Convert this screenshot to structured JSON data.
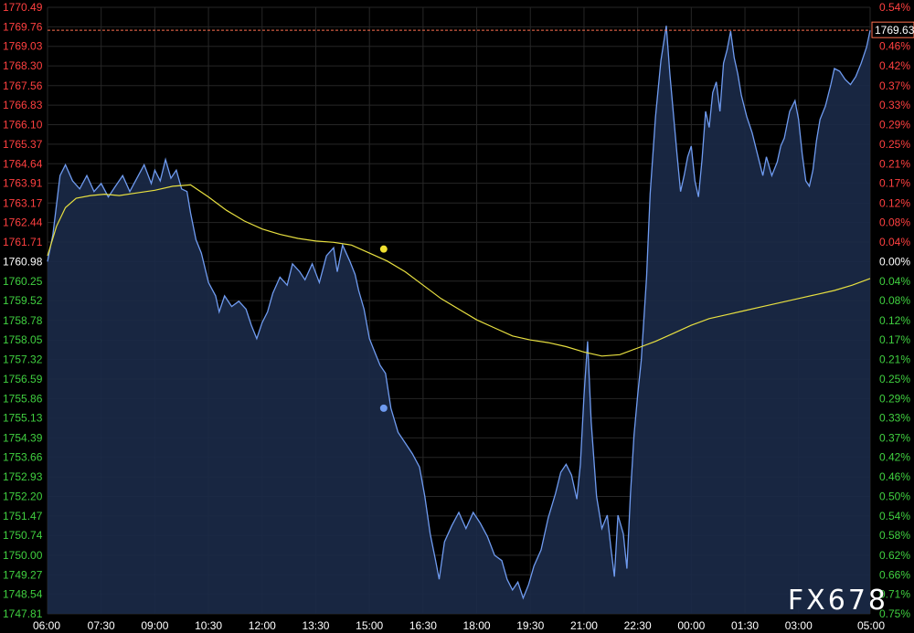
{
  "watermark": "FX678",
  "chart_data": {
    "type": "line",
    "title": "",
    "xlabel": "",
    "ylabel": "",
    "reference_price": 1760.98,
    "ylim": [
      1747.81,
      1770.49
    ],
    "y_ticks": [
      "1770.49",
      "1769.76",
      "1769.03",
      "1768.30",
      "1767.56",
      "1766.83",
      "1766.10",
      "1765.37",
      "1764.64",
      "1763.91",
      "1763.17",
      "1762.44",
      "1761.71",
      "1760.98",
      "1760.25",
      "1759.52",
      "1758.78",
      "1758.05",
      "1757.32",
      "1756.59",
      "1755.86",
      "1755.13",
      "1754.39",
      "1753.66",
      "1752.93",
      "1752.20",
      "1751.47",
      "1750.74",
      "1750.00",
      "1749.27",
      "1748.54",
      "1747.81"
    ],
    "pct_ticks": [
      "0.54%",
      "0.50%",
      "0.46%",
      "0.42%",
      "0.37%",
      "0.33%",
      "0.29%",
      "0.25%",
      "0.21%",
      "0.17%",
      "0.12%",
      "0.08%",
      "0.04%",
      "0.00%",
      "0.04%",
      "0.08%",
      "0.12%",
      "0.17%",
      "0.21%",
      "0.25%",
      "0.29%",
      "0.33%",
      "0.37%",
      "0.42%",
      "0.46%",
      "0.50%",
      "0.54%",
      "0.58%",
      "0.62%",
      "0.66%",
      "0.71%",
      "0.75%"
    ],
    "x_ticks": [
      "06:00",
      "07:30",
      "09:00",
      "10:30",
      "12:00",
      "13:30",
      "15:00",
      "16:30",
      "18:00",
      "19:30",
      "21:00",
      "22:30",
      "00:00",
      "01:30",
      "03:00",
      "05:00"
    ],
    "x_tick_hours": [
      0,
      1.5,
      3,
      4.5,
      6,
      7.5,
      9,
      10.5,
      12,
      13.5,
      15,
      16.5,
      18,
      19.5,
      21,
      23
    ],
    "last_price": "1769.63",
    "last_price_value": 1769.63,
    "colors": {
      "background": "#000000",
      "price_line": "#6f9bf0",
      "area_fill": "#1b2a48",
      "average_line": "#e8e040",
      "up_label": "#ff4040",
      "down_label": "#40d040",
      "zero_label": "#ffffff",
      "grid": "#262626",
      "last_price_line": "#ff7050"
    },
    "series": [
      {
        "kind": "price",
        "points": [
          [
            0,
            1760.98
          ],
          [
            0.15,
            1762.0
          ],
          [
            0.35,
            1764.2
          ],
          [
            0.5,
            1764.6
          ],
          [
            0.7,
            1764.0
          ],
          [
            0.9,
            1763.7
          ],
          [
            1.1,
            1764.2
          ],
          [
            1.3,
            1763.6
          ],
          [
            1.5,
            1763.9
          ],
          [
            1.7,
            1763.4
          ],
          [
            1.9,
            1763.8
          ],
          [
            2.1,
            1764.2
          ],
          [
            2.3,
            1763.6
          ],
          [
            2.5,
            1764.1
          ],
          [
            2.7,
            1764.6
          ],
          [
            2.9,
            1763.9
          ],
          [
            3.0,
            1764.4
          ],
          [
            3.15,
            1764.0
          ],
          [
            3.3,
            1764.8
          ],
          [
            3.45,
            1764.1
          ],
          [
            3.6,
            1764.4
          ],
          [
            3.75,
            1763.7
          ],
          [
            3.9,
            1763.6
          ],
          [
            4.0,
            1762.8
          ],
          [
            4.15,
            1761.8
          ],
          [
            4.3,
            1761.3
          ],
          [
            4.5,
            1760.2
          ],
          [
            4.7,
            1759.7
          ],
          [
            4.8,
            1759.1
          ],
          [
            4.95,
            1759.7
          ],
          [
            5.15,
            1759.3
          ],
          [
            5.35,
            1759.5
          ],
          [
            5.55,
            1759.2
          ],
          [
            5.7,
            1758.6
          ],
          [
            5.85,
            1758.1
          ],
          [
            6.0,
            1758.7
          ],
          [
            6.15,
            1759.1
          ],
          [
            6.3,
            1759.8
          ],
          [
            6.5,
            1760.4
          ],
          [
            6.7,
            1760.1
          ],
          [
            6.85,
            1760.9
          ],
          [
            7.05,
            1760.6
          ],
          [
            7.2,
            1760.3
          ],
          [
            7.4,
            1760.9
          ],
          [
            7.6,
            1760.2
          ],
          [
            7.8,
            1761.2
          ],
          [
            8.0,
            1761.5
          ],
          [
            8.1,
            1760.6
          ],
          [
            8.25,
            1761.6
          ],
          [
            8.45,
            1761.0
          ],
          [
            8.6,
            1760.5
          ],
          [
            8.7,
            1759.9
          ],
          [
            8.85,
            1759.2
          ],
          [
            9.0,
            1758.1
          ],
          [
            9.15,
            1757.6
          ],
          [
            9.3,
            1757.1
          ],
          [
            9.45,
            1756.8
          ],
          [
            9.6,
            1755.5
          ],
          [
            9.8,
            1754.6
          ],
          [
            10.0,
            1754.2
          ],
          [
            10.2,
            1753.8
          ],
          [
            10.4,
            1753.3
          ],
          [
            10.55,
            1752.2
          ],
          [
            10.7,
            1750.8
          ],
          [
            10.85,
            1749.8
          ],
          [
            10.95,
            1749.1
          ],
          [
            11.1,
            1750.5
          ],
          [
            11.3,
            1751.1
          ],
          [
            11.5,
            1751.6
          ],
          [
            11.7,
            1751.0
          ],
          [
            11.9,
            1751.6
          ],
          [
            12.1,
            1751.2
          ],
          [
            12.3,
            1750.7
          ],
          [
            12.5,
            1750.0
          ],
          [
            12.7,
            1749.8
          ],
          [
            12.85,
            1749.1
          ],
          [
            13.0,
            1748.7
          ],
          [
            13.15,
            1749.0
          ],
          [
            13.3,
            1748.4
          ],
          [
            13.45,
            1748.9
          ],
          [
            13.6,
            1749.6
          ],
          [
            13.8,
            1750.2
          ],
          [
            14.0,
            1751.4
          ],
          [
            14.2,
            1752.3
          ],
          [
            14.35,
            1753.1
          ],
          [
            14.5,
            1753.4
          ],
          [
            14.65,
            1753.0
          ],
          [
            14.8,
            1752.1
          ],
          [
            14.9,
            1753.4
          ],
          [
            15.0,
            1756.0
          ],
          [
            15.1,
            1758.0
          ],
          [
            15.2,
            1755.0
          ],
          [
            15.35,
            1752.2
          ],
          [
            15.5,
            1751.0
          ],
          [
            15.65,
            1751.5
          ],
          [
            15.75,
            1750.3
          ],
          [
            15.85,
            1749.2
          ],
          [
            15.95,
            1751.5
          ],
          [
            16.1,
            1750.8
          ],
          [
            16.2,
            1749.5
          ],
          [
            16.3,
            1752.3
          ],
          [
            16.4,
            1754.5
          ],
          [
            16.5,
            1756.0
          ],
          [
            16.6,
            1757.3
          ],
          [
            16.75,
            1760.4
          ],
          [
            16.85,
            1763.5
          ],
          [
            17.0,
            1766.4
          ],
          [
            17.15,
            1768.5
          ],
          [
            17.3,
            1769.8
          ],
          [
            17.4,
            1768.0
          ],
          [
            17.5,
            1766.5
          ],
          [
            17.6,
            1765.0
          ],
          [
            17.7,
            1763.6
          ],
          [
            17.8,
            1764.2
          ],
          [
            17.9,
            1764.9
          ],
          [
            18.0,
            1765.3
          ],
          [
            18.1,
            1764.0
          ],
          [
            18.2,
            1763.4
          ],
          [
            18.3,
            1764.8
          ],
          [
            18.4,
            1766.6
          ],
          [
            18.5,
            1766.0
          ],
          [
            18.6,
            1767.3
          ],
          [
            18.7,
            1767.7
          ],
          [
            18.8,
            1766.6
          ],
          [
            18.9,
            1768.4
          ],
          [
            19.0,
            1768.9
          ],
          [
            19.1,
            1769.6
          ],
          [
            19.2,
            1768.6
          ],
          [
            19.3,
            1768.0
          ],
          [
            19.4,
            1767.2
          ],
          [
            19.55,
            1766.4
          ],
          [
            19.7,
            1765.8
          ],
          [
            19.85,
            1765.0
          ],
          [
            20.0,
            1764.2
          ],
          [
            20.1,
            1764.9
          ],
          [
            20.25,
            1764.2
          ],
          [
            20.4,
            1764.7
          ],
          [
            20.5,
            1765.3
          ],
          [
            20.6,
            1765.6
          ],
          [
            20.75,
            1766.6
          ],
          [
            20.9,
            1767.0
          ],
          [
            21.0,
            1766.3
          ],
          [
            21.1,
            1765.0
          ],
          [
            21.2,
            1764.0
          ],
          [
            21.3,
            1763.8
          ],
          [
            21.4,
            1764.4
          ],
          [
            21.5,
            1765.5
          ],
          [
            21.6,
            1766.3
          ],
          [
            21.75,
            1766.8
          ],
          [
            21.9,
            1767.6
          ],
          [
            22.0,
            1768.2
          ],
          [
            22.15,
            1768.1
          ],
          [
            22.3,
            1767.8
          ],
          [
            22.45,
            1767.6
          ],
          [
            22.6,
            1767.9
          ],
          [
            22.75,
            1768.4
          ],
          [
            22.9,
            1769.0
          ],
          [
            23.0,
            1769.63
          ]
        ]
      },
      {
        "kind": "average",
        "points": [
          [
            0,
            1761.2
          ],
          [
            0.25,
            1762.3
          ],
          [
            0.5,
            1763.0
          ],
          [
            0.8,
            1763.35
          ],
          [
            1.2,
            1763.45
          ],
          [
            1.6,
            1763.5
          ],
          [
            2.0,
            1763.45
          ],
          [
            2.5,
            1763.55
          ],
          [
            3.0,
            1763.65
          ],
          [
            3.5,
            1763.8
          ],
          [
            4.0,
            1763.85
          ],
          [
            4.5,
            1763.4
          ],
          [
            5.0,
            1762.9
          ],
          [
            5.5,
            1762.5
          ],
          [
            6.0,
            1762.2
          ],
          [
            6.5,
            1762.0
          ],
          [
            7.0,
            1761.85
          ],
          [
            7.5,
            1761.75
          ],
          [
            8.0,
            1761.7
          ],
          [
            8.5,
            1761.6
          ],
          [
            9.0,
            1761.3
          ],
          [
            9.5,
            1761.0
          ],
          [
            10.0,
            1760.6
          ],
          [
            10.5,
            1760.1
          ],
          [
            11.0,
            1759.6
          ],
          [
            11.5,
            1759.2
          ],
          [
            12.0,
            1758.8
          ],
          [
            12.5,
            1758.5
          ],
          [
            13.0,
            1758.2
          ],
          [
            13.5,
            1758.05
          ],
          [
            14.0,
            1757.95
          ],
          [
            14.5,
            1757.8
          ],
          [
            15.0,
            1757.6
          ],
          [
            15.5,
            1757.45
          ],
          [
            16.0,
            1757.5
          ],
          [
            16.5,
            1757.75
          ],
          [
            17.0,
            1758.0
          ],
          [
            17.5,
            1758.3
          ],
          [
            18.0,
            1758.6
          ],
          [
            18.5,
            1758.85
          ],
          [
            19.0,
            1759.0
          ],
          [
            19.5,
            1759.15
          ],
          [
            20.0,
            1759.3
          ],
          [
            20.5,
            1759.45
          ],
          [
            21.0,
            1759.6
          ],
          [
            21.5,
            1759.75
          ],
          [
            22.0,
            1759.9
          ],
          [
            22.5,
            1760.1
          ],
          [
            23.0,
            1760.35
          ]
        ]
      }
    ],
    "markers": [
      {
        "series": "average",
        "x": 9.4,
        "y": 1761.45,
        "color": "#f0e030"
      },
      {
        "series": "price",
        "x": 9.4,
        "y": 1755.5,
        "color": "#6f9bf0"
      }
    ]
  }
}
